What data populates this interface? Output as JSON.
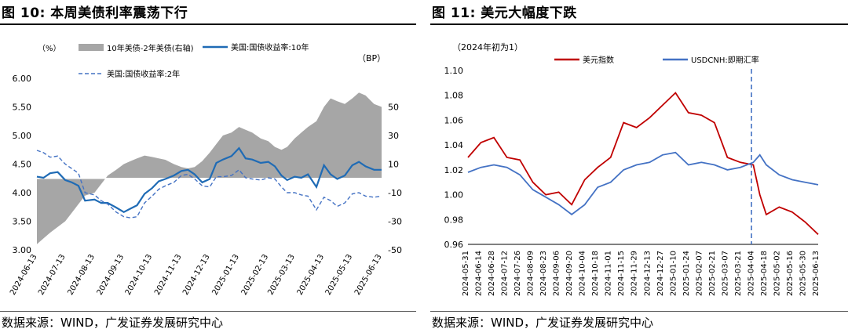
{
  "figures": [
    {
      "title": "图 10:  本周美债利率震荡下行",
      "source": "数据来源：WIND，广发证券发展研究中心"
    },
    {
      "title": "图 11:  美元大幅度下跌",
      "source": "数据来源：WIND，广发证券发展研究中心"
    }
  ],
  "chart_data": [
    {
      "type": "line",
      "title": "",
      "left_unit": "（%）",
      "right_unit": "（BP）",
      "ylim_left": [
        3.0,
        6.0
      ],
      "yticks_left": [
        "3.00",
        "3.50",
        "4.00",
        "4.50",
        "5.00",
        "5.50",
        "6.00"
      ],
      "ylim_right": [
        -50,
        70
      ],
      "yticks_right": [
        "-50",
        "-30",
        "-10",
        "10",
        "30",
        "50"
      ],
      "x_ticks": [
        "2024-06-13",
        "2024-07-13",
        "2024-08-13",
        "2024-09-13",
        "2024-10-13",
        "2024-11-13",
        "2024-12-13",
        "2025-01-13",
        "2025-02-13",
        "2025-03-13",
        "2025-04-13",
        "2025-05-13",
        "2025-06-13"
      ],
      "legend": [
        "10年美债-2年美债(右轴)",
        "美国:国债收益率:10年",
        "美国:国债收益率:2年"
      ],
      "series": [
        {
          "name": "10年美债-2年美债(右轴)",
          "kind": "area",
          "axis": "right",
          "color": "#a6a6a6",
          "x": [
            "2024-06-13",
            "2024-06-20",
            "2024-06-27",
            "2024-07-05",
            "2024-07-13",
            "2024-07-20",
            "2024-07-27",
            "2024-08-03",
            "2024-08-13",
            "2024-08-20",
            "2024-08-27",
            "2024-09-05",
            "2024-09-13",
            "2024-09-20",
            "2024-09-27",
            "2024-10-05",
            "2024-10-13",
            "2024-10-20",
            "2024-10-27",
            "2024-11-05",
            "2024-11-13",
            "2024-11-20",
            "2024-11-27",
            "2024-12-05",
            "2024-12-13",
            "2024-12-20",
            "2024-12-27",
            "2025-01-05",
            "2025-01-13",
            "2025-01-20",
            "2025-01-27",
            "2025-02-05",
            "2025-02-13",
            "2025-02-20",
            "2025-02-27",
            "2025-03-05",
            "2025-03-13",
            "2025-03-20",
            "2025-03-27",
            "2025-04-05",
            "2025-04-13",
            "2025-04-20",
            "2025-04-27",
            "2025-05-05",
            "2025-05-13",
            "2025-05-20",
            "2025-05-27",
            "2025-06-05",
            "2025-06-13"
          ],
          "values": [
            -46,
            -42,
            -38,
            -34,
            -30,
            -24,
            -18,
            -12,
            -10,
            -4,
            2,
            6,
            10,
            12,
            14,
            16,
            15,
            14,
            13,
            10,
            8,
            7,
            8,
            12,
            18,
            24,
            30,
            32,
            36,
            34,
            32,
            28,
            26,
            22,
            20,
            22,
            28,
            32,
            36,
            40,
            50,
            56,
            54,
            52,
            56,
            60,
            58,
            52,
            50
          ]
        },
        {
          "name": "美国:国债收益率:10年",
          "kind": "line",
          "axis": "left",
          "color": "#1f6bb5",
          "x": [
            "2024-06-13",
            "2024-06-20",
            "2024-06-27",
            "2024-07-05",
            "2024-07-13",
            "2024-07-20",
            "2024-07-27",
            "2024-08-03",
            "2024-08-13",
            "2024-08-20",
            "2024-08-27",
            "2024-09-05",
            "2024-09-13",
            "2024-09-20",
            "2024-09-27",
            "2024-10-05",
            "2024-10-13",
            "2024-10-20",
            "2024-10-27",
            "2024-11-05",
            "2024-11-13",
            "2024-11-20",
            "2024-11-27",
            "2024-12-05",
            "2024-12-13",
            "2024-12-20",
            "2024-12-27",
            "2025-01-05",
            "2025-01-13",
            "2025-01-20",
            "2025-01-27",
            "2025-02-05",
            "2025-02-13",
            "2025-02-20",
            "2025-02-27",
            "2025-03-05",
            "2025-03-13",
            "2025-03-20",
            "2025-03-27",
            "2025-04-05",
            "2025-04-13",
            "2025-04-20",
            "2025-04-27",
            "2025-05-05",
            "2025-05-13",
            "2025-05-20",
            "2025-05-27",
            "2025-06-05",
            "2025-06-13"
          ],
          "values": [
            4.28,
            4.26,
            4.34,
            4.36,
            4.22,
            4.18,
            4.12,
            3.86,
            3.88,
            3.82,
            3.82,
            3.74,
            3.66,
            3.72,
            3.78,
            3.98,
            4.08,
            4.2,
            4.24,
            4.3,
            4.38,
            4.4,
            4.32,
            4.18,
            4.24,
            4.52,
            4.58,
            4.64,
            4.78,
            4.6,
            4.58,
            4.52,
            4.54,
            4.46,
            4.3,
            4.22,
            4.28,
            4.26,
            4.32,
            4.1,
            4.48,
            4.32,
            4.24,
            4.3,
            4.48,
            4.54,
            4.46,
            4.4,
            4.4
          ]
        },
        {
          "name": "美国:国债收益率:2年",
          "kind": "line",
          "dashed": true,
          "axis": "left",
          "color": "#4472c4",
          "x": [
            "2024-06-13",
            "2024-06-20",
            "2024-06-27",
            "2024-07-05",
            "2024-07-13",
            "2024-07-20",
            "2024-07-27",
            "2024-08-03",
            "2024-08-13",
            "2024-08-20",
            "2024-08-27",
            "2024-09-05",
            "2024-09-13",
            "2024-09-20",
            "2024-09-27",
            "2024-10-05",
            "2024-10-13",
            "2024-10-20",
            "2024-10-27",
            "2024-11-05",
            "2024-11-13",
            "2024-11-20",
            "2024-11-27",
            "2024-12-05",
            "2024-12-13",
            "2024-12-20",
            "2024-12-27",
            "2025-01-05",
            "2025-01-13",
            "2025-01-20",
            "2025-01-27",
            "2025-02-05",
            "2025-02-13",
            "2025-02-20",
            "2025-02-27",
            "2025-03-05",
            "2025-03-13",
            "2025-03-20",
            "2025-03-27",
            "2025-04-05",
            "2025-04-13",
            "2025-04-20",
            "2025-04-27",
            "2025-05-05",
            "2025-05-13",
            "2025-05-20",
            "2025-05-27",
            "2025-06-05",
            "2025-06-13"
          ],
          "values": [
            4.74,
            4.7,
            4.62,
            4.64,
            4.5,
            4.42,
            4.34,
            4.0,
            3.96,
            3.86,
            3.8,
            3.66,
            3.58,
            3.56,
            3.58,
            3.82,
            3.94,
            4.06,
            4.12,
            4.18,
            4.3,
            4.32,
            4.24,
            4.12,
            4.1,
            4.28,
            4.28,
            4.3,
            4.4,
            4.26,
            4.24,
            4.22,
            4.26,
            4.24,
            4.1,
            4.0,
            4.0,
            3.96,
            3.94,
            3.7,
            3.92,
            3.86,
            3.76,
            3.82,
            3.98,
            4.0,
            3.94,
            3.92,
            3.94
          ]
        }
      ]
    },
    {
      "type": "line",
      "title": "",
      "left_unit": "（2024年初为1）",
      "ylim": [
        0.96,
        1.1
      ],
      "yticks": [
        "0.96",
        "0.98",
        "1.00",
        "1.02",
        "1.04",
        "1.06",
        "1.08",
        "1.10"
      ],
      "x_ticks": [
        "2024-05-31",
        "2024-06-14",
        "2024-06-28",
        "2024-07-12",
        "2024-07-26",
        "2024-08-09",
        "2024-08-23",
        "2024-09-06",
        "2024-09-20",
        "2024-10-04",
        "2024-10-18",
        "2024-11-01",
        "2024-11-15",
        "2024-11-29",
        "2024-12-13",
        "2024-12-27",
        "2025-01-10",
        "2025-01-24",
        "2025-02-07",
        "2025-02-21",
        "2025-03-07",
        "2025-03-21",
        "2025-04-04",
        "2025-04-18",
        "2025-05-02",
        "2025-05-16",
        "2025-05-30",
        "2025-06-13"
      ],
      "legend": [
        "美元指数",
        "USDCNH:即期汇率"
      ],
      "vline_date": "2025-04-02",
      "series": [
        {
          "name": "美元指数",
          "kind": "line",
          "color": "#c00000",
          "x": [
            "2024-05-31",
            "2024-06-14",
            "2024-06-28",
            "2024-07-12",
            "2024-07-26",
            "2024-08-09",
            "2024-08-23",
            "2024-09-06",
            "2024-09-20",
            "2024-10-04",
            "2024-10-18",
            "2024-11-01",
            "2024-11-15",
            "2024-11-29",
            "2024-12-13",
            "2024-12-27",
            "2025-01-10",
            "2025-01-24",
            "2025-02-07",
            "2025-02-21",
            "2025-03-07",
            "2025-03-21",
            "2025-04-04",
            "2025-04-11",
            "2025-04-18",
            "2025-05-02",
            "2025-05-16",
            "2025-05-30",
            "2025-06-13"
          ],
          "values": [
            1.03,
            1.042,
            1.046,
            1.03,
            1.028,
            1.01,
            1.0,
            1.002,
            0.992,
            1.012,
            1.022,
            1.03,
            1.058,
            1.054,
            1.062,
            1.072,
            1.082,
            1.066,
            1.064,
            1.058,
            1.03,
            1.026,
            1.024,
            1.0,
            0.984,
            0.99,
            0.986,
            0.978,
            0.968
          ]
        },
        {
          "name": "USDCNH:即期汇率",
          "kind": "line",
          "color": "#4472c4",
          "x": [
            "2024-05-31",
            "2024-06-14",
            "2024-06-28",
            "2024-07-12",
            "2024-07-26",
            "2024-08-09",
            "2024-08-23",
            "2024-09-06",
            "2024-09-20",
            "2024-10-04",
            "2024-10-18",
            "2024-11-01",
            "2024-11-15",
            "2024-11-29",
            "2024-12-13",
            "2024-12-27",
            "2025-01-10",
            "2025-01-24",
            "2025-02-07",
            "2025-02-21",
            "2025-03-07",
            "2025-03-21",
            "2025-04-04",
            "2025-04-11",
            "2025-04-18",
            "2025-05-02",
            "2025-05-16",
            "2025-05-30",
            "2025-06-13"
          ],
          "values": [
            1.018,
            1.022,
            1.024,
            1.022,
            1.016,
            1.004,
            0.998,
            0.992,
            0.984,
            0.992,
            1.006,
            1.01,
            1.02,
            1.024,
            1.026,
            1.032,
            1.034,
            1.024,
            1.026,
            1.024,
            1.02,
            1.022,
            1.026,
            1.032,
            1.024,
            1.016,
            1.012,
            1.01,
            1.008
          ]
        }
      ]
    }
  ]
}
